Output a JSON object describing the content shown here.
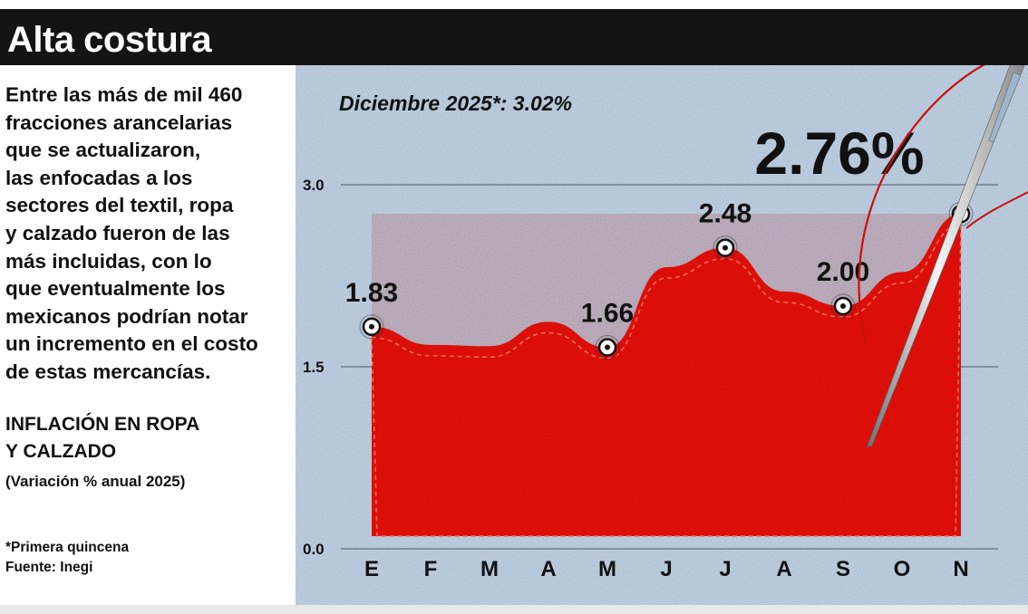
{
  "header": {
    "title": "Alta costura"
  },
  "intro": {
    "lines": [
      "Entre las más de mil 460",
      "fracciones arancelarias",
      "que se actualizaron,",
      "las enfocadas a los",
      "sectores del textil, ropa",
      "y calzado fueron de las",
      "más incluidas, con lo",
      "que eventualmente los",
      "mexicanos podrían notar",
      "un incremento en el costo",
      "de estas mercancías."
    ]
  },
  "chart_title_lines": [
    "INFLACIÓN EN ROPA",
    "Y CALZADO"
  ],
  "chart_subtitle": "(Variación % anual 2025)",
  "notes": {
    "footnote": "*Primera quincena",
    "source": "Fuente: Inegi"
  },
  "colors": {
    "fill": "#e3120b",
    "header_bg": "#141414",
    "denim": "#9fb5cc"
  },
  "chart_data": {
    "type": "area",
    "title": "INFLACIÓN EN ROPA Y CALZADO",
    "subtitle": "(Variación % anual 2025)",
    "categories": [
      "E",
      "F",
      "M",
      "A",
      "M",
      "J",
      "J",
      "A",
      "S",
      "O",
      "N"
    ],
    "values": [
      1.83,
      1.68,
      1.67,
      1.87,
      1.66,
      2.32,
      2.48,
      2.12,
      2.0,
      2.28,
      2.76
    ],
    "labeled_points": [
      {
        "index": 0,
        "label": "1.83"
      },
      {
        "index": 4,
        "label": "1.66"
      },
      {
        "index": 6,
        "label": "2.48"
      },
      {
        "index": 8,
        "label": "2.00"
      },
      {
        "index": 10,
        "label": "2.76%"
      }
    ],
    "annotation": "Diciembre 2025*: 3.02%",
    "yticks": [
      "0.0",
      "1.5",
      "3.0"
    ],
    "ylim": [
      0,
      3
    ],
    "grid": true,
    "xlabel": "",
    "ylabel": ""
  }
}
